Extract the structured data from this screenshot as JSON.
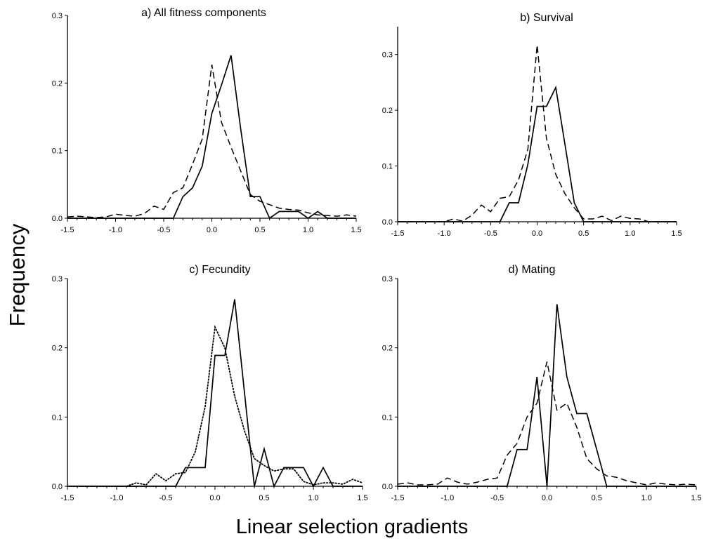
{
  "figure": {
    "ylabel": "Frequency",
    "xlabel": "Linear selection gradients"
  },
  "chart_data": [
    {
      "type": "line",
      "title": "a) All fitness components",
      "xlim": [
        -1.5,
        1.5
      ],
      "ylim": [
        0,
        0.3
      ],
      "xticks": [
        "-1.5",
        "-1.0",
        "-0.5",
        "0.0",
        "0.5",
        "1.0",
        "1.5"
      ],
      "yticks": [
        "0.0",
        "0.1",
        "0.2",
        "0.3"
      ],
      "x": [
        -1.5,
        -1.4,
        -1.3,
        -1.2,
        -1.1,
        -1.0,
        -0.9,
        -0.8,
        -0.7,
        -0.6,
        -0.5,
        -0.4,
        -0.3,
        -0.2,
        -0.1,
        0.0,
        0.1,
        0.2,
        0.3,
        0.4,
        0.5,
        0.6,
        0.7,
        0.8,
        0.9,
        1.0,
        1.1,
        1.2,
        1.3,
        1.4,
        1.5
      ],
      "series": [
        {
          "style": "solid",
          "values": [
            0,
            0,
            0,
            0,
            0,
            0,
            0,
            0,
            0,
            0,
            0,
            0,
            0.032,
            0.045,
            0.077,
            0.155,
            0.197,
            0.241,
            0.132,
            0.032,
            0.032,
            0,
            0.01,
            0.01,
            0.01,
            0,
            0.01,
            0,
            0,
            0,
            0
          ]
        },
        {
          "style": "dashed",
          "values": [
            0.002,
            0.003,
            0.002,
            0.001,
            0.002,
            0.006,
            0.004,
            0.003,
            0.007,
            0.018,
            0.013,
            0.038,
            0.045,
            0.08,
            0.117,
            0.227,
            0.142,
            0.105,
            0.07,
            0.035,
            0.025,
            0.02,
            0.015,
            0.013,
            0.012,
            0.008,
            0.005,
            0.004,
            0.003,
            0.005,
            0.003
          ]
        }
      ]
    },
    {
      "type": "line",
      "title": "b) Survival",
      "xlim": [
        -1.5,
        1.5
      ],
      "ylim": [
        0,
        0.35
      ],
      "xticks": [
        "-1.5",
        "-1.0",
        "-0.5",
        "0.0",
        "0.5",
        "1.0",
        "1.5"
      ],
      "yticks": [
        "0.0",
        "0.1",
        "0.2",
        "0.3"
      ],
      "x": [
        -1.5,
        -1.4,
        -1.3,
        -1.2,
        -1.1,
        -1.0,
        -0.9,
        -0.8,
        -0.7,
        -0.6,
        -0.5,
        -0.4,
        -0.3,
        -0.2,
        -0.1,
        0.0,
        0.1,
        0.2,
        0.3,
        0.4,
        0.5,
        0.6,
        0.7,
        0.8,
        0.9,
        1.0,
        1.1,
        1.2,
        1.3,
        1.4,
        1.5
      ],
      "series": [
        {
          "style": "solid",
          "values": [
            0,
            0,
            0,
            0,
            0,
            0,
            0,
            0,
            0,
            0,
            0,
            0,
            0.034,
            0.034,
            0.103,
            0.207,
            0.207,
            0.241,
            0.138,
            0.034,
            0,
            0,
            0,
            0,
            0,
            0,
            0,
            0,
            0,
            0,
            0
          ]
        },
        {
          "style": "dashed",
          "values": [
            0,
            0,
            0,
            0,
            0,
            0,
            0.005,
            0.001,
            0.012,
            0.03,
            0.018,
            0.042,
            0.045,
            0.075,
            0.13,
            0.317,
            0.15,
            0.085,
            0.05,
            0.025,
            0.005,
            0.005,
            0.01,
            0.002,
            0.01,
            0.006,
            0.005,
            0,
            0,
            0,
            0
          ]
        }
      ]
    },
    {
      "type": "line",
      "title": "c) Fecundity",
      "xlim": [
        -1.5,
        1.5
      ],
      "ylim": [
        0,
        0.3
      ],
      "xticks": [
        "-1.5",
        "-1.0",
        "-0.5",
        "0.0",
        "0.5",
        "1.0",
        "1.5"
      ],
      "yticks": [
        "0.0",
        "0.1",
        "0.2",
        "0.3"
      ],
      "x": [
        -1.5,
        -1.4,
        -1.3,
        -1.2,
        -1.1,
        -1.0,
        -0.9,
        -0.8,
        -0.7,
        -0.6,
        -0.5,
        -0.4,
        -0.3,
        -0.2,
        -0.1,
        0.0,
        0.1,
        0.2,
        0.3,
        0.4,
        0.5,
        0.6,
        0.7,
        0.8,
        0.9,
        1.0,
        1.1,
        1.2,
        1.3,
        1.4,
        1.5
      ],
      "series": [
        {
          "style": "solid",
          "values": [
            0,
            0,
            0,
            0,
            0,
            0,
            0,
            0,
            0,
            0,
            0,
            0,
            0.027,
            0.027,
            0.027,
            0.189,
            0.189,
            0.27,
            0.135,
            0,
            0.054,
            0,
            0.027,
            0.027,
            0.027,
            0,
            0.027,
            0,
            0,
            0,
            0
          ]
        },
        {
          "style": "dotted",
          "values": [
            0,
            0,
            0,
            0,
            0,
            0,
            0,
            0.005,
            0.002,
            0.018,
            0.008,
            0.018,
            0.02,
            0.05,
            0.115,
            0.23,
            0.2,
            0.13,
            0.08,
            0.04,
            0.03,
            0.022,
            0.025,
            0.025,
            0.007,
            0.002,
            0.005,
            0.005,
            0.003,
            0.01,
            0.005
          ]
        }
      ]
    },
    {
      "type": "line",
      "title": "d) Mating",
      "xlim": [
        -1.5,
        1.5
      ],
      "ylim": [
        0,
        0.3
      ],
      "xticks": [
        "-1.5",
        "-1.0",
        "-0.5",
        "0.0",
        "0.5",
        "1.0",
        "1.5"
      ],
      "yticks": [
        "0.0",
        "0.1",
        "0.2",
        "0.3"
      ],
      "x": [
        -1.5,
        -1.4,
        -1.3,
        -1.2,
        -1.1,
        -1.0,
        -0.9,
        -0.8,
        -0.7,
        -0.6,
        -0.5,
        -0.4,
        -0.3,
        -0.2,
        -0.1,
        0.0,
        0.1,
        0.2,
        0.3,
        0.4,
        0.5,
        0.6,
        0.7,
        0.8,
        0.9,
        1.0,
        1.1,
        1.2,
        1.3,
        1.4,
        1.5
      ],
      "series": [
        {
          "style": "solid",
          "values": [
            0,
            0,
            0,
            0,
            0,
            0,
            0,
            0,
            0,
            0,
            0,
            0,
            0.053,
            0.053,
            0.158,
            0,
            0.263,
            0.158,
            0.105,
            0.105,
            0.053,
            0,
            0,
            0,
            0,
            0,
            0,
            0,
            0,
            0,
            0
          ]
        },
        {
          "style": "dashed",
          "values": [
            0.003,
            0.005,
            0.002,
            0.002,
            0.003,
            0.012,
            0.006,
            0.003,
            0.006,
            0.01,
            0.012,
            0.045,
            0.062,
            0.1,
            0.12,
            0.18,
            0.11,
            0.12,
            0.085,
            0.04,
            0.025,
            0.015,
            0.013,
            0.008,
            0.005,
            0.002,
            0.005,
            0.003,
            0.002,
            0.003,
            0.002
          ]
        }
      ]
    }
  ]
}
